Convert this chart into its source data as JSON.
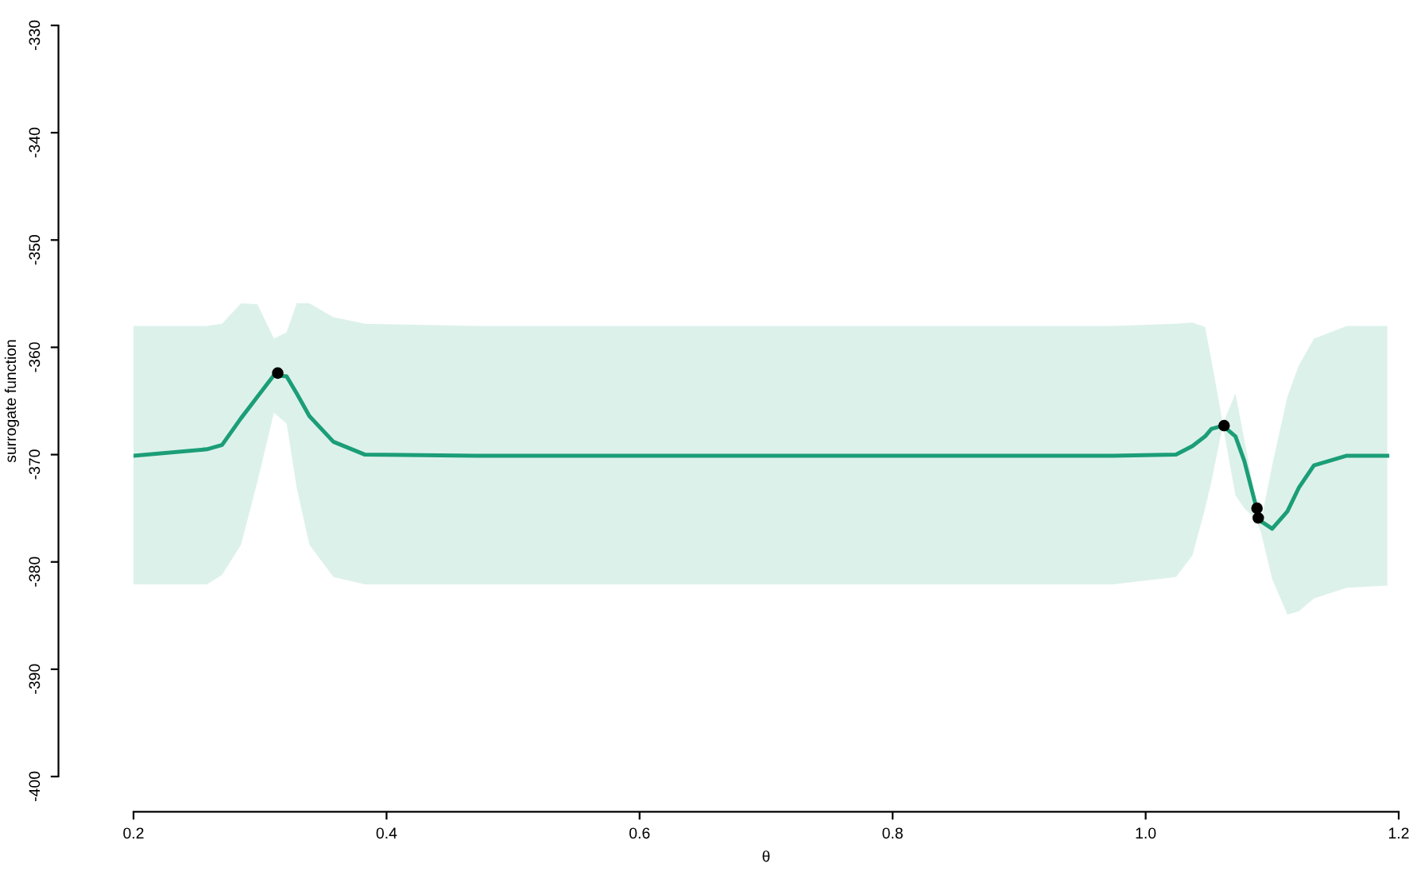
{
  "chart_data": {
    "type": "line",
    "xlabel": "θ",
    "ylabel": "surrogate function",
    "xlim": [
      0.2,
      1.2
    ],
    "ylim": [
      -400,
      -330
    ],
    "xticks": [
      0.2,
      0.4,
      0.6,
      0.8,
      {
        "value": 1.0,
        "label": "1.0"
      },
      1.2
    ],
    "yticks": [
      -400,
      -390,
      -380,
      -370,
      -360,
      -350,
      -340,
      -330
    ],
    "grid": false,
    "legend": false,
    "series": [
      {
        "color": "#1b9e77",
        "x": [
          0.2,
          0.258,
          0.27,
          0.285,
          0.298,
          0.311,
          0.321,
          0.329,
          0.339,
          0.358,
          0.383,
          0.471,
          0.974,
          1.024,
          1.037,
          1.047,
          1.052,
          1.061,
          1.071,
          1.078,
          1.087,
          1.091,
          1.1,
          1.112,
          1.121,
          1.133,
          1.159,
          1.191
        ],
        "values": [
          -370.1,
          -369.5,
          -369.1,
          -366.6,
          -364.6,
          -362.6,
          -362.7,
          -364.3,
          -366.4,
          -368.8,
          -370.0,
          -370.1,
          -370.1,
          -370.0,
          -369.2,
          -368.3,
          -367.6,
          -367.3,
          -368.3,
          -370.6,
          -374.7,
          -376.2,
          -376.9,
          -375.3,
          -373.1,
          -371.0,
          -370.1,
          -370.1
        ],
        "upper": [
          -358.0,
          -358.0,
          -357.8,
          -355.9,
          -356.0,
          -359.2,
          -358.6,
          -355.9,
          -355.9,
          -357.2,
          -357.8,
          -358.0,
          -358.0,
          -357.8,
          -357.7,
          -358.1,
          -361.2,
          -367.1,
          -364.3,
          -368.6,
          -374.3,
          -376.3,
          -371.0,
          -364.6,
          -361.7,
          -359.2,
          -358.0,
          -358.0
        ],
        "lower": [
          -382.1,
          -382.1,
          -381.2,
          -378.4,
          -372.5,
          -366.1,
          -367.1,
          -373.1,
          -378.4,
          -381.4,
          -382.1,
          -382.1,
          -382.1,
          -381.4,
          -379.4,
          -375.0,
          -372.5,
          -367.3,
          -373.8,
          -375.0,
          -376.0,
          -377.2,
          -381.6,
          -384.9,
          -384.6,
          -383.4,
          -382.4,
          -382.2
        ]
      },
      {
        "type": "scatter",
        "color": "#000000",
        "marker": "circle",
        "x": [
          0.314,
          1.062,
          1.088,
          1.089
        ],
        "values": [
          -362.4,
          -367.3,
          -375.0,
          -375.9
        ]
      }
    ]
  }
}
